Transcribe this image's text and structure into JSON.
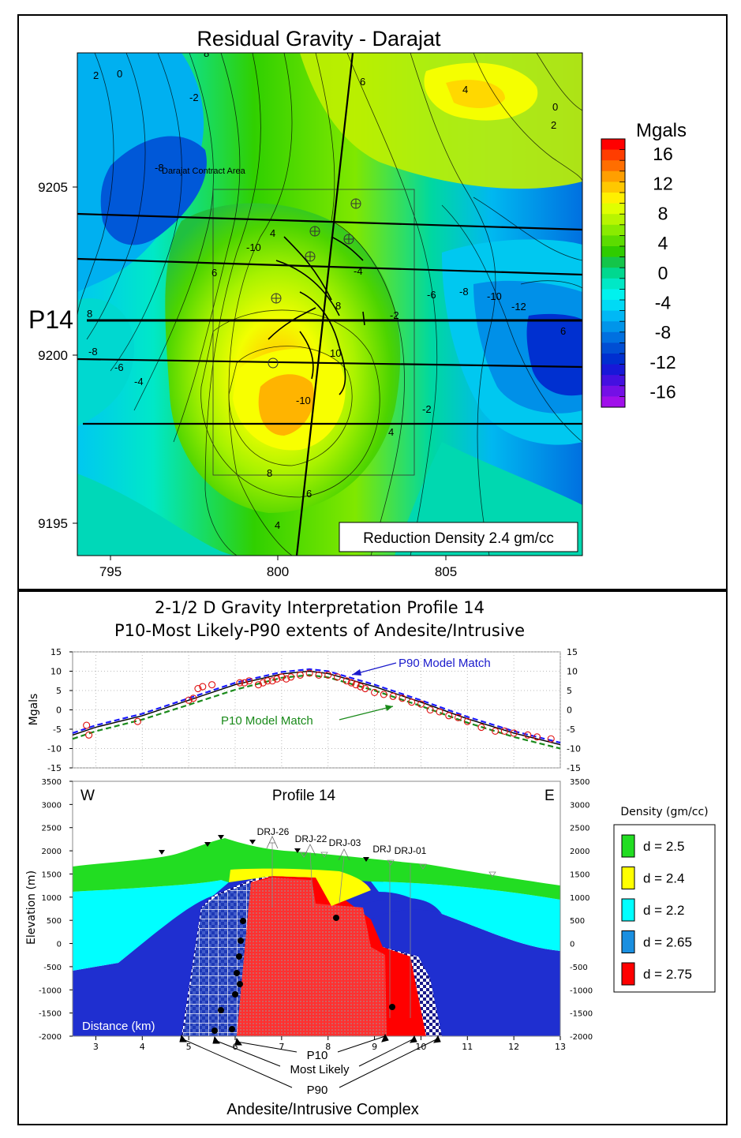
{
  "map": {
    "title": "Residual Gravity - Darajat",
    "area_label": "Darajat Contract Area",
    "profile_label": "P14",
    "reduction_note": "Reduction Density 2.4 gm/cc",
    "x_ticks": [
      "795",
      "800",
      "805"
    ],
    "y_ticks": [
      "9205",
      "9200",
      "9195"
    ],
    "contour_labels": [
      "8",
      "2",
      "0",
      "-2",
      "-8",
      "-10",
      "4",
      "6",
      "8",
      "6",
      "4",
      "0",
      "2",
      "-2",
      "-4",
      "-6",
      "-8",
      "-10",
      "-12",
      "6",
      "8",
      "10",
      "-10",
      "-8",
      "-6",
      "-4",
      "-2",
      "4",
      "8",
      "6",
      "4"
    ],
    "colorbar": {
      "unit": "Mgals",
      "labels": [
        "16",
        "12",
        "8",
        "4",
        "0",
        "-4",
        "-8",
        "-12",
        "-16"
      ],
      "colors": [
        "#ff0000",
        "#ff3d00",
        "#ff6e00",
        "#ff9f00",
        "#ffc800",
        "#fff000",
        "#e0ff00",
        "#b8f500",
        "#8aeb00",
        "#5cdc00",
        "#2fcc00",
        "#14c54a",
        "#00d88f",
        "#00e8c6",
        "#00f2ee",
        "#00daf5",
        "#00b8f5",
        "#0095ea",
        "#0070e0",
        "#004ed4",
        "#002fd0",
        "#1818d8",
        "#4410e0",
        "#7410e6",
        "#a010ea"
      ]
    }
  },
  "profile": {
    "title_line1": "2-1/2 D Gravity Interpretation Profile 14",
    "title_line2": "P10-Most Likely-P90 extents of Andesite/Intrusive",
    "gravity_yticks": [
      "15",
      "10",
      "5",
      "0",
      "-5",
      "-10",
      "-15"
    ],
    "gravity_ylabel": "Mgals",
    "p90_label": "P90 Model  Match",
    "p10_label": "P10 Model  Match",
    "section_title": "Profile 14",
    "west": "W",
    "east": "E",
    "elev_yticks": [
      "3500",
      "3000",
      "2500",
      "2000",
      "1500",
      "1000",
      "500",
      "0",
      "-500",
      "-1000",
      "-1500",
      "-2000"
    ],
    "elev_ylabel": "Elevation (m)",
    "x_ticks": [
      "3",
      "4",
      "5",
      "6",
      "7",
      "8",
      "9",
      "10",
      "11",
      "12",
      "13"
    ],
    "distance_label": "Distance (km)",
    "wells": [
      "DRJ-26",
      "DRJ-22",
      "DRJ-03",
      "DRJ",
      "DRJ-01"
    ],
    "extent_labels": [
      "P10",
      "Most Likely",
      "P90"
    ],
    "complex_label": "Andesite/Intrusive Complex",
    "legend_title": "Density (gm/cc)",
    "legend": [
      {
        "label": "d = 2.5",
        "color": "#22dd22"
      },
      {
        "label": "d = 2.4",
        "color": "#ffff00"
      },
      {
        "label": "d = 2.2",
        "color": "#00ffff"
      },
      {
        "label": "d = 2.65",
        "color": "#1a8fe0"
      },
      {
        "label": "d = 2.75",
        "color": "#ff0000"
      }
    ]
  },
  "chart_data": {
    "type": "line",
    "title": "2-1/2 D Gravity Interpretation Profile 14",
    "xlabel": "Distance (km)",
    "ylabel": "Mgals",
    "xlim": [
      2.5,
      13
    ],
    "ylim": [
      -15,
      15
    ],
    "x": [
      2.5,
      3.0,
      4.0,
      5.0,
      6.0,
      7.0,
      7.6,
      8.0,
      9.0,
      10.0,
      11.0,
      12.0,
      13.0
    ],
    "series": [
      {
        "name": "P90 Model  Match",
        "color": "#1a1aff",
        "values": [
          -6.0,
          -4.0,
          -1.0,
          3.0,
          7.0,
          9.8,
          10.5,
          10.0,
          6.5,
          2.5,
          -1.8,
          -5.5,
          -8.5
        ]
      },
      {
        "name": "Most Likely",
        "color": "#000000",
        "values": [
          -6.5,
          -4.5,
          -1.5,
          2.5,
          6.5,
          9.3,
          10.0,
          9.4,
          6.0,
          2.0,
          -2.3,
          -6.0,
          -9.0
        ]
      },
      {
        "name": "P10 Model  Match",
        "color": "#1a8a1a",
        "values": [
          -7.5,
          -5.5,
          -2.5,
          1.3,
          5.2,
          8.3,
          9.0,
          8.4,
          5.0,
          1.0,
          -3.3,
          -7.0,
          -10.0
        ]
      }
    ],
    "observed": {
      "name": "Observed",
      "x": [
        2.8,
        2.85,
        3.9,
        5.0,
        5.1,
        5.2,
        5.3,
        5.5,
        6.1,
        6.2,
        6.3,
        6.5,
        6.6,
        6.7,
        6.8,
        6.9,
        7.0,
        7.1,
        7.2,
        7.4,
        7.6,
        7.8,
        8.0,
        8.2,
        8.4,
        8.5,
        8.6,
        8.7,
        8.8,
        9.0,
        9.2,
        9.4,
        9.6,
        9.8,
        10.0,
        10.2,
        10.4,
        10.6,
        10.8,
        11.0,
        11.3,
        11.6,
        11.8,
        12.0,
        12.3,
        12.5,
        12.8
      ],
      "y": [
        -4.0,
        -6.5,
        -3.0,
        2.5,
        3.0,
        5.5,
        6.0,
        6.5,
        7.0,
        7.0,
        7.5,
        6.5,
        7.0,
        7.5,
        7.5,
        8.0,
        8.5,
        8.0,
        8.5,
        9.0,
        9.5,
        9.0,
        9.0,
        8.5,
        7.5,
        7.0,
        6.5,
        6.0,
        5.5,
        4.5,
        4.0,
        3.5,
        3.0,
        2.0,
        1.5,
        0.0,
        -0.5,
        -1.5,
        -2.0,
        -3.0,
        -4.5,
        -5.5,
        -5.5,
        -6.0,
        -6.5,
        -7.0,
        -7.5
      ]
    }
  }
}
